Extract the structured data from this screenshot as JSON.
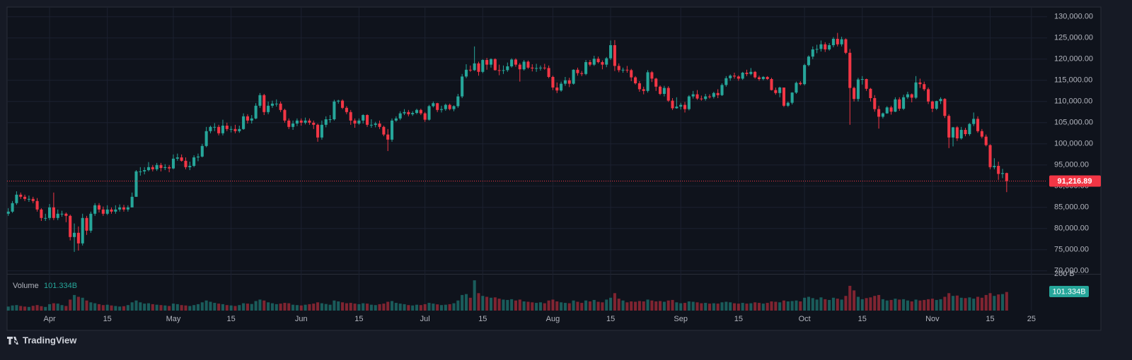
{
  "chart_data": {
    "type": "candlestick",
    "open": [
      83500,
      84000,
      86000,
      88000,
      87500,
      87000,
      87000,
      86500,
      84500,
      82500,
      82500,
      85000,
      82500,
      83500,
      83500,
      83000,
      78000,
      79000,
      76500,
      82500,
      79500,
      83500,
      85500,
      84500,
      83500,
      84500,
      84000,
      84500,
      85000,
      84500,
      85000,
      87500,
      93500,
      93500,
      93800,
      94500,
      94000,
      95000,
      94300,
      94500,
      94200,
      96500,
      96800,
      96000,
      94500,
      94800,
      96800,
      97000,
      99500,
      103000,
      104000,
      104000,
      102500,
      104300,
      103500,
      103500,
      103000,
      103500,
      106500,
      105500,
      106000,
      109000,
      111500,
      107500,
      109000,
      109500,
      109500,
      108000,
      105500,
      104000,
      104800,
      105500,
      105000,
      105500,
      105000,
      104500,
      101500,
      104500,
      105800,
      105800,
      110000,
      110200,
      108500,
      107500,
      105500,
      104800,
      105500,
      106800,
      104500,
      104500,
      104800,
      104000,
      102200,
      101000,
      105500,
      106000,
      107200,
      107500,
      107000,
      107300,
      108000,
      107200,
      105700,
      108900,
      109600,
      108000,
      108200,
      109200,
      108200,
      108900,
      111200,
      115900,
      117500,
      117400,
      119000,
      117000,
      119800,
      118700,
      120000,
      117400,
      117300,
      117400,
      118300,
      119900,
      118700,
      117600,
      119400,
      118000,
      117800,
      117900,
      118000,
      117900,
      115800,
      113300,
      112600,
      114200,
      115000,
      114200,
      117500,
      116700,
      116500,
      119300,
      118700,
      120100,
      119300,
      118700,
      120200,
      123300,
      118400,
      117400,
      117500,
      117400,
      115700,
      114300,
      112900,
      112500,
      116900,
      115400,
      113500,
      111800,
      113200,
      110200,
      108400,
      108800,
      109200,
      108200,
      111200,
      111700,
      110700,
      110600,
      111200,
      111100,
      112000,
      111500,
      113900,
      115500,
      116100,
      115900,
      115400,
      116800,
      116500,
      117000,
      115700,
      115300,
      115800,
      115300,
      112700,
      112000,
      113300,
      109000,
      109700,
      112100,
      114400,
      114100,
      118600,
      120600,
      122300,
      122400,
      123500,
      122300,
      123300,
      124800,
      123500,
      124700,
      121500,
      113200,
      110600,
      115200,
      115300,
      113000,
      110800,
      108200,
      106400,
      107200,
      108600,
      107600,
      110500,
      108300,
      111000,
      111700,
      110900,
      114500,
      114100,
      112900,
      110000,
      108300,
      110100,
      110600,
      106600,
      101500,
      103900,
      101300,
      103300,
      102300,
      104700,
      105900,
      103000,
      101700,
      99700,
      94500,
      94800,
      92900,
      93100
    ],
    "high": [
      84800,
      86500,
      88800,
      88500,
      88000,
      87800,
      87500,
      87200,
      84800,
      83500,
      85800,
      88500,
      84500,
      84200,
      83800,
      83300,
      81200,
      80500,
      83500,
      83000,
      84000,
      86000,
      86000,
      85200,
      85500,
      85000,
      85500,
      85700,
      85600,
      85500,
      88500,
      93800,
      94500,
      94500,
      95700,
      95000,
      95500,
      95500,
      95200,
      95000,
      97500,
      97700,
      97500,
      96800,
      95800,
      97300,
      97700,
      100000,
      104000,
      104300,
      104900,
      104500,
      105700,
      105000,
      104200,
      104500,
      104300,
      107200,
      107000,
      106800,
      109600,
      112000,
      111800,
      110000,
      110200,
      110500,
      110000,
      108300,
      106000,
      105500,
      106000,
      106000,
      106200,
      106000,
      105500,
      104800,
      105500,
      106500,
      106800,
      110400,
      110400,
      110500,
      108900,
      108000,
      106000,
      106000,
      107000,
      107000,
      105800,
      105200,
      105500,
      104300,
      103500,
      106000,
      106500,
      107700,
      108200,
      108000,
      107700,
      108300,
      108300,
      107500,
      109200,
      110000,
      109700,
      109000,
      109500,
      109500,
      109100,
      111800,
      116500,
      118800,
      118500,
      123000,
      119400,
      120000,
      120300,
      120200,
      120200,
      118700,
      118500,
      119200,
      120200,
      120200,
      119100,
      119800,
      119700,
      118800,
      118900,
      118500,
      118900,
      118500,
      116100,
      114500,
      114700,
      115800,
      115600,
      117600,
      118000,
      117200,
      119800,
      119800,
      120800,
      120600,
      119700,
      120500,
      124400,
      124500,
      119000,
      118000,
      118400,
      117700,
      116000,
      114800,
      113500,
      117400,
      117200,
      115600,
      113800,
      113700,
      113600,
      110800,
      111000,
      109700,
      109900,
      111500,
      112500,
      112700,
      111400,
      111800,
      111700,
      112300,
      112900,
      114300,
      116000,
      116400,
      116800,
      116200,
      117000,
      117500,
      117900,
      117200,
      116100,
      116000,
      116000,
      115600,
      113300,
      113500,
      113300,
      110000,
      112200,
      114700,
      114800,
      118900,
      120900,
      123000,
      123400,
      124400,
      124000,
      123800,
      125200,
      126200,
      125300,
      124900,
      122400,
      113500,
      115600,
      116000,
      115400,
      113200,
      111500,
      109000,
      107400,
      108900,
      109000,
      111000,
      111000,
      111600,
      112300,
      111900,
      116000,
      115400,
      114700,
      113300,
      110200,
      110200,
      111000,
      110800,
      107000,
      104000,
      104200,
      104000,
      103800,
      104900,
      107400,
      106500,
      103500,
      102200,
      99900,
      96600,
      95800,
      94100,
      93200
    ],
    "low": [
      83000,
      83700,
      85600,
      87000,
      86500,
      86300,
      86000,
      84000,
      81800,
      81800,
      82000,
      82000,
      82000,
      82800,
      81500,
      77200,
      74500,
      74800,
      76000,
      78500,
      79000,
      83000,
      83800,
      83000,
      83200,
      83500,
      83500,
      84000,
      84000,
      84000,
      85000,
      87500,
      92500,
      92800,
      93500,
      93500,
      93600,
      93500,
      93800,
      93300,
      94000,
      96000,
      95800,
      94000,
      93800,
      94500,
      95900,
      96800,
      99200,
      102500,
      103000,
      102000,
      102000,
      103000,
      102700,
      102500,
      102600,
      103300,
      104800,
      104800,
      105800,
      108500,
      106800,
      107000,
      108500,
      108800,
      107500,
      105000,
      103500,
      103300,
      104200,
      104300,
      104600,
      104500,
      103500,
      100500,
      101000,
      103900,
      105000,
      105500,
      109500,
      108200,
      107000,
      104500,
      103800,
      104500,
      104800,
      104000,
      103800,
      103900,
      103500,
      101800,
      98300,
      100500,
      105200,
      105600,
      106800,
      106500,
      106600,
      107000,
      106800,
      105200,
      105500,
      108600,
      107500,
      107400,
      107800,
      107900,
      107700,
      108500,
      110800,
      115500,
      117000,
      117200,
      116100,
      116700,
      117500,
      118000,
      117300,
      116200,
      116500,
      117000,
      118000,
      118200,
      114700,
      117300,
      117700,
      117100,
      117000,
      117300,
      117500,
      115500,
      112700,
      112000,
      112300,
      113700,
      113400,
      114000,
      116100,
      116000,
      116200,
      118300,
      118400,
      119000,
      117600,
      118100,
      119800,
      117200,
      116900,
      116800,
      116800,
      114800,
      114000,
      112300,
      111700,
      112100,
      114600,
      112500,
      111500,
      111200,
      109900,
      108000,
      108300,
      108100,
      107400,
      107900,
      110700,
      110400,
      110200,
      110200,
      110700,
      110700,
      110800,
      111300,
      113500,
      114900,
      115400,
      114900,
      115100,
      116000,
      116200,
      115400,
      114900,
      115000,
      115100,
      112600,
      111600,
      111000,
      108700,
      108700,
      109300,
      111800,
      113800,
      113800,
      118300,
      120000,
      121400,
      121800,
      121700,
      122000,
      122800,
      123000,
      123000,
      121200,
      104500,
      110000,
      110000,
      114000,
      112500,
      110000,
      107600,
      103600,
      106000,
      107100,
      106900,
      107500,
      107800,
      108000,
      110600,
      109800,
      110600,
      113200,
      112500,
      109400,
      107500,
      108000,
      109400,
      106100,
      99000,
      99400,
      100700,
      101000,
      101800,
      101900,
      104200,
      102600,
      101300,
      99400,
      94000,
      94000,
      91500,
      91900,
      88600
    ],
    "close": [
      84000,
      86000,
      88000,
      87500,
      87000,
      87000,
      86500,
      84500,
      82500,
      82500,
      85000,
      82500,
      83500,
      83500,
      83000,
      78000,
      79000,
      76500,
      82500,
      79500,
      83500,
      85500,
      84500,
      83500,
      84500,
      84000,
      84500,
      85000,
      84500,
      85000,
      87500,
      93500,
      93500,
      93800,
      94500,
      94000,
      95000,
      94300,
      94500,
      94200,
      96500,
      96800,
      96000,
      94500,
      94800,
      96800,
      97000,
      99500,
      103000,
      104000,
      104000,
      102500,
      104300,
      103500,
      103500,
      103000,
      103500,
      106500,
      105500,
      106000,
      109000,
      111500,
      107500,
      109000,
      109500,
      109500,
      108000,
      105500,
      104000,
      104800,
      105500,
      105000,
      105500,
      105000,
      104500,
      101500,
      104500,
      105800,
      105800,
      110000,
      110200,
      108500,
      107500,
      105500,
      104800,
      105500,
      106800,
      104500,
      104500,
      104800,
      104000,
      102200,
      101000,
      105500,
      106000,
      107200,
      107500,
      107000,
      107300,
      108000,
      107200,
      105700,
      108900,
      109600,
      108000,
      108200,
      109200,
      108200,
      108900,
      111200,
      115900,
      117500,
      117400,
      119000,
      117000,
      119800,
      118700,
      120000,
      117400,
      117300,
      117400,
      118300,
      119900,
      118700,
      117600,
      119400,
      118000,
      117800,
      117900,
      118000,
      117900,
      115800,
      113300,
      112600,
      114200,
      115000,
      114200,
      117500,
      116700,
      116500,
      119300,
      118700,
      120100,
      119300,
      118700,
      120200,
      123300,
      118400,
      117400,
      117500,
      117400,
      115700,
      114300,
      112900,
      112500,
      116900,
      115400,
      113500,
      111800,
      113200,
      110200,
      108400,
      108800,
      109200,
      108200,
      111200,
      111700,
      110700,
      110600,
      111200,
      111100,
      112000,
      111500,
      113900,
      115500,
      116100,
      115900,
      115400,
      116800,
      116500,
      117000,
      115700,
      115300,
      115800,
      115300,
      112700,
      112000,
      113300,
      109000,
      109700,
      112100,
      114400,
      114100,
      118600,
      120600,
      122300,
      122400,
      123500,
      122300,
      123300,
      124800,
      123500,
      124700,
      121500,
      113200,
      110600,
      115200,
      115300,
      113000,
      110800,
      108200,
      106400,
      107200,
      108600,
      107600,
      110500,
      108300,
      111000,
      111700,
      110900,
      114500,
      114100,
      112900,
      110000,
      108300,
      110100,
      110600,
      106600,
      101500,
      103900,
      101300,
      103300,
      102300,
      104700,
      105900,
      103000,
      101700,
      99700,
      94500,
      94800,
      92900,
      93100,
      91216.89
    ],
    "last_price_label": "91,216.89",
    "up_color": "#26a69a",
    "down_color": "#f23645",
    "xlim": [
      -0.3,
      251.8
    ],
    "xticks": [
      {
        "value": 10,
        "label": "Apr"
      },
      {
        "value": 24,
        "label": "15"
      },
      {
        "value": 40,
        "label": "May"
      },
      {
        "value": 54,
        "label": "15"
      },
      {
        "value": 71,
        "label": "Jun"
      },
      {
        "value": 85,
        "label": "15"
      },
      {
        "value": 101,
        "label": "Jul"
      },
      {
        "value": 115,
        "label": "15"
      },
      {
        "value": 132,
        "label": "Aug"
      },
      {
        "value": 146,
        "label": "15"
      },
      {
        "value": 163,
        "label": "Sep"
      },
      {
        "value": 177,
        "label": "15"
      },
      {
        "value": 193,
        "label": "Oct"
      },
      {
        "value": 207,
        "label": "15"
      },
      {
        "value": 224,
        "label": "Nov"
      },
      {
        "value": 238,
        "label": "15"
      },
      {
        "value": 248,
        "label": "25"
      }
    ],
    "ylim": [
      69300,
      132300
    ],
    "yticks": [
      {
        "value": 70000,
        "label": "70,000.00"
      },
      {
        "value": 75000,
        "label": "75,000.00"
      },
      {
        "value": 80000,
        "label": "80,000.00"
      },
      {
        "value": 85000,
        "label": "85,000.00"
      },
      {
        "value": 90000,
        "label": "90,000.00"
      },
      {
        "value": 95000,
        "label": "95,000.00"
      },
      {
        "value": 100000,
        "label": "100,000.00"
      },
      {
        "value": 105000,
        "label": "105,000.00"
      },
      {
        "value": 110000,
        "label": "110,000.00"
      },
      {
        "value": 115000,
        "label": "115,000.00"
      },
      {
        "value": 120000,
        "label": "120,000.00"
      },
      {
        "value": 125000,
        "label": "125,000.00"
      },
      {
        "value": 130000,
        "label": "130,000.00"
      }
    ],
    "grid": true,
    "volume": {
      "name": "Volume",
      "value_label": "101.334B",
      "ylim": [
        0,
        200
      ],
      "yticks": [
        {
          "value": 200,
          "label": "200 B"
        }
      ],
      "values": [
        22,
        28,
        30,
        25,
        22,
        20,
        26,
        30,
        24,
        20,
        35,
        40,
        38,
        30,
        25,
        60,
        85,
        75,
        70,
        55,
        45,
        40,
        35,
        30,
        32,
        28,
        25,
        22,
        24,
        30,
        45,
        55,
        45,
        38,
        40,
        35,
        32,
        30,
        28,
        25,
        38,
        35,
        30,
        28,
        25,
        30,
        35,
        45,
        55,
        48,
        42,
        38,
        35,
        30,
        28,
        25,
        30,
        40,
        38,
        36,
        52,
        60,
        55,
        45,
        40,
        35,
        38,
        42,
        40,
        32,
        30,
        28,
        32,
        35,
        38,
        45,
        40,
        36,
        32,
        55,
        50,
        45,
        40,
        42,
        38,
        35,
        40,
        38,
        32,
        30,
        35,
        38,
        48,
        52,
        42,
        38,
        35,
        30,
        28,
        32,
        30,
        35,
        42,
        38,
        34,
        30,
        32,
        35,
        40,
        55,
        85,
        90,
        70,
        165,
        95,
        80,
        75,
        70,
        72,
        65,
        60,
        58,
        62,
        55,
        60,
        50,
        48,
        45,
        42,
        45,
        40,
        55,
        60,
        50,
        45,
        42,
        40,
        55,
        48,
        42,
        55,
        50,
        58,
        48,
        45,
        60,
        70,
        95,
        65,
        55,
        45,
        50,
        48,
        52,
        50,
        60,
        55,
        50,
        52,
        48,
        55,
        58,
        45,
        40,
        42,
        50,
        48,
        45,
        40,
        42,
        38,
        40,
        38,
        45,
        48,
        45,
        40,
        38,
        42,
        38,
        40,
        45,
        42,
        38,
        42,
        50,
        48,
        45,
        55,
        50,
        52,
        55,
        50,
        70,
        75,
        68,
        60,
        72,
        62,
        58,
        70,
        65,
        60,
        80,
        135,
        110,
        75,
        62,
        68,
        72,
        80,
        85,
        62,
        55,
        58,
        65,
        60,
        62,
        55,
        50,
        60,
        55,
        58,
        62,
        65,
        58,
        62,
        75,
        95,
        80,
        82,
        70,
        68,
        72,
        65,
        75,
        70,
        85,
        95,
        80,
        88,
        90,
        101.334
      ]
    }
  },
  "brand": "TradingView"
}
